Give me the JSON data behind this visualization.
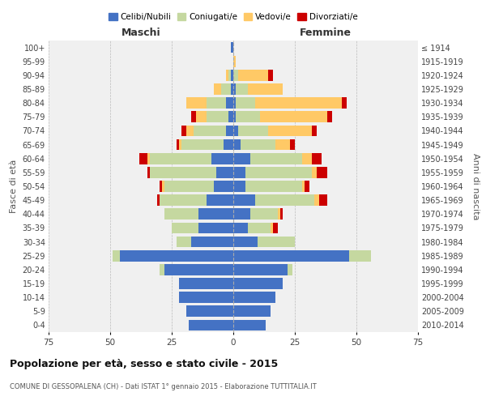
{
  "age_groups": [
    "0-4",
    "5-9",
    "10-14",
    "15-19",
    "20-24",
    "25-29",
    "30-34",
    "35-39",
    "40-44",
    "45-49",
    "50-54",
    "55-59",
    "60-64",
    "65-69",
    "70-74",
    "75-79",
    "80-84",
    "85-89",
    "90-94",
    "95-99",
    "100+"
  ],
  "birth_years": [
    "2010-2014",
    "2005-2009",
    "2000-2004",
    "1995-1999",
    "1990-1994",
    "1985-1989",
    "1980-1984",
    "1975-1979",
    "1970-1974",
    "1965-1969",
    "1960-1964",
    "1955-1959",
    "1950-1954",
    "1945-1949",
    "1940-1944",
    "1935-1939",
    "1930-1934",
    "1925-1929",
    "1920-1924",
    "1915-1919",
    "≤ 1914"
  ],
  "maschi": {
    "celibi": [
      18,
      19,
      22,
      22,
      28,
      46,
      17,
      14,
      14,
      11,
      8,
      7,
      9,
      4,
      3,
      2,
      3,
      1,
      1,
      0,
      1
    ],
    "coniugati": [
      0,
      0,
      0,
      0,
      2,
      3,
      6,
      11,
      14,
      19,
      20,
      27,
      25,
      17,
      13,
      9,
      8,
      4,
      1,
      0,
      0
    ],
    "vedovi": [
      0,
      0,
      0,
      0,
      0,
      0,
      0,
      0,
      0,
      0,
      1,
      0,
      1,
      1,
      3,
      4,
      8,
      3,
      1,
      0,
      0
    ],
    "divorziati": [
      0,
      0,
      0,
      0,
      0,
      0,
      0,
      0,
      0,
      1,
      1,
      1,
      3,
      1,
      2,
      2,
      0,
      0,
      0,
      0,
      0
    ]
  },
  "femmine": {
    "nubili": [
      13,
      15,
      17,
      20,
      22,
      47,
      10,
      6,
      7,
      9,
      5,
      5,
      7,
      3,
      2,
      1,
      1,
      1,
      0,
      0,
      0
    ],
    "coniugate": [
      0,
      0,
      0,
      0,
      2,
      9,
      15,
      9,
      11,
      24,
      23,
      27,
      21,
      14,
      12,
      10,
      8,
      5,
      2,
      0,
      0
    ],
    "vedove": [
      0,
      0,
      0,
      0,
      0,
      0,
      0,
      1,
      1,
      2,
      1,
      2,
      4,
      6,
      18,
      27,
      35,
      14,
      12,
      1,
      0
    ],
    "divorziate": [
      0,
      0,
      0,
      0,
      0,
      0,
      0,
      2,
      1,
      3,
      2,
      4,
      4,
      2,
      2,
      2,
      2,
      0,
      2,
      0,
      0
    ]
  },
  "colors": {
    "celibi": "#4472c4",
    "coniugati": "#c5d8a0",
    "vedovi": "#ffc966",
    "divorziati": "#cc0000"
  },
  "xlim": 75,
  "title": "Popolazione per età, sesso e stato civile - 2015",
  "subtitle": "COMUNE DI GESSOPALENA (CH) - Dati ISTAT 1° gennaio 2015 - Elaborazione TUTTITALIA.IT",
  "ylabel_left": "Fasce di età",
  "ylabel_right": "Anni di nascita",
  "xlabel_maschi": "Maschi",
  "xlabel_femmine": "Femmine",
  "legend_labels": [
    "Celibi/Nubili",
    "Coniugati/e",
    "Vedovi/e",
    "Divorziati/e"
  ],
  "background_color": "#ffffff",
  "plot_bg": "#f0f0f0",
  "bar_height": 0.8
}
